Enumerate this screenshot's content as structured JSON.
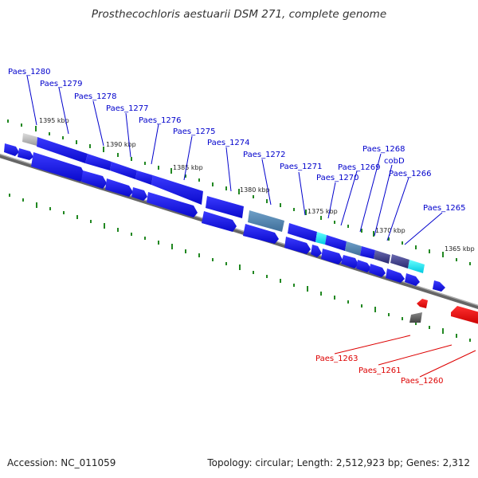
{
  "title": "Prosthecochloris aestuarii DSM 271, complete genome",
  "footer": {
    "accession": "Accession: NC_011059",
    "topology": "Topology: circular; Length: 2,512,923 bp; Genes: 2,312"
  },
  "colors": {
    "forward_gene": "#1414e6",
    "reverse_gene": "#ee1111",
    "label_forward": "#0000cc",
    "label_reverse": "#dd0000",
    "backbone": "#888888",
    "tick": "#228822"
  },
  "scale": {
    "unit": "kbp",
    "labels": [
      "1395 kbp",
      "1390 kbp",
      "1385 kbp",
      "1380 kbp",
      "1375 kbp",
      "1370 kbp",
      "1365 kbp"
    ]
  },
  "genes": [
    {
      "label": "Paes_1280",
      "strand": "forward"
    },
    {
      "label": "Paes_1279",
      "strand": "forward"
    },
    {
      "label": "Paes_1278",
      "strand": "forward"
    },
    {
      "label": "Paes_1277",
      "strand": "forward"
    },
    {
      "label": "Paes_1276",
      "strand": "forward"
    },
    {
      "label": "Paes_1275",
      "strand": "forward"
    },
    {
      "label": "Paes_1274",
      "strand": "forward"
    },
    {
      "label": "Paes_1272",
      "strand": "forward"
    },
    {
      "label": "Paes_1271",
      "strand": "forward"
    },
    {
      "label": "Paes_1270",
      "strand": "forward"
    },
    {
      "label": "Paes_1269",
      "strand": "forward"
    },
    {
      "label": "Paes_1268",
      "strand": "forward"
    },
    {
      "label": "cobD",
      "strand": "forward"
    },
    {
      "label": "Paes_1266",
      "strand": "forward"
    },
    {
      "label": "Paes_1265",
      "strand": "forward"
    },
    {
      "label": "Paes_1263",
      "strand": "reverse"
    },
    {
      "label": "Paes_1261",
      "strand": "reverse"
    },
    {
      "label": "Paes_1260",
      "strand": "reverse"
    }
  ]
}
